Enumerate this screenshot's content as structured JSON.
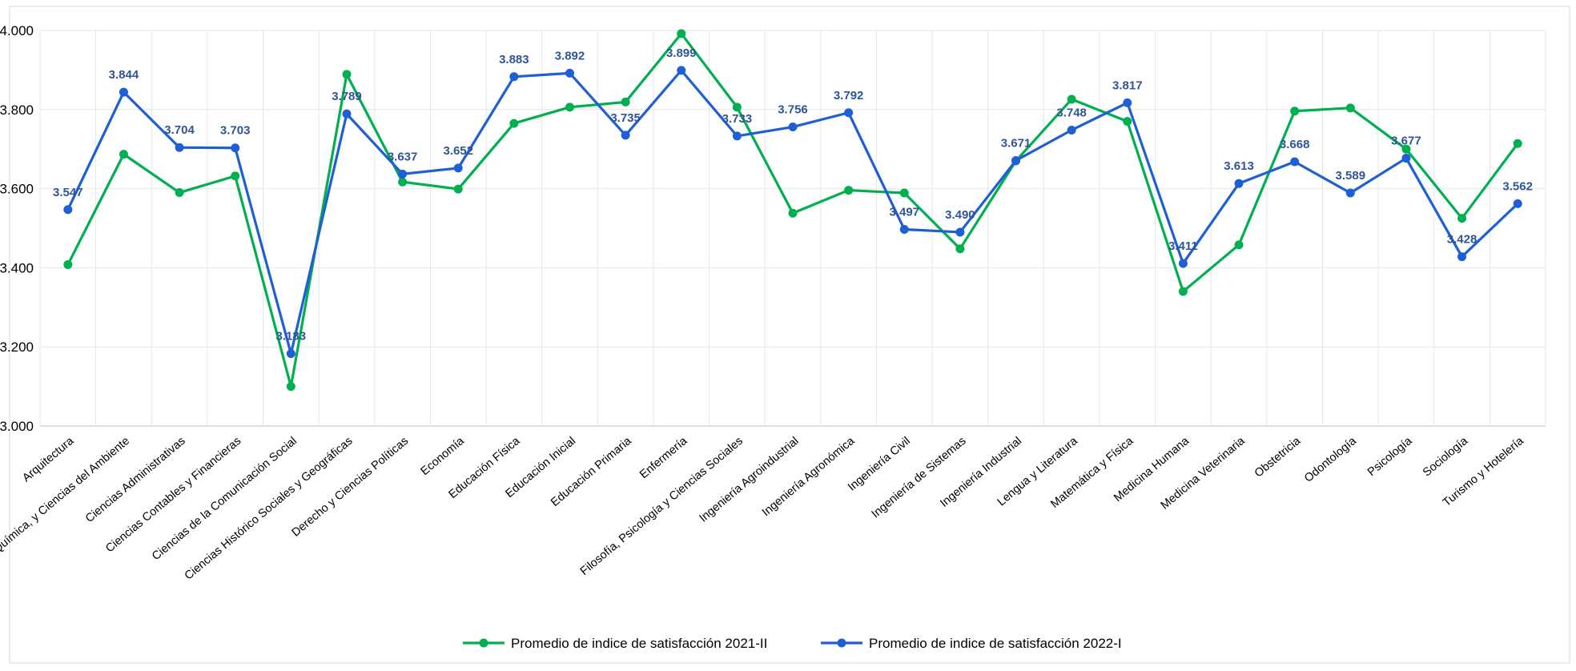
{
  "chart_data": {
    "type": "line",
    "title": "",
    "xlabel": "",
    "ylabel": "",
    "ylim": [
      3.0,
      4.0
    ],
    "yticks": [
      "3.000",
      "3.200",
      "3.400",
      "3.600",
      "3.800",
      "4.000"
    ],
    "grid": true,
    "legend_position": "bottom",
    "categories": [
      "Arquitectura",
      "Biología, Química, y Ciencias del Ambiente",
      "Ciencias Administrativas",
      "Ciencias Contables y Financieras",
      "Ciencias de la Comunicación Social",
      "Ciencias Histórico Sociales y Geográficas",
      "Derecho y Ciencias Políticas",
      "Economía",
      "Educación Física",
      "Educación Inicial",
      "Educación Primaria",
      "Enfermería",
      "Filosofía, Psicología y Ciencias Sociales",
      "Ingeniería Agroindustrial",
      "Ingeniería Agronómica",
      "Ingeniería Civil",
      "Ingeniería de Sistemas",
      "Ingeniería Industrial",
      "Lengua y Literatura",
      "Matemática y Física",
      "Medicina Humana",
      "Medicina Veterinaria",
      "Obstetricia",
      "Odontología",
      "Psicología",
      "Sociología",
      "Turismo y Hotelería"
    ],
    "series": [
      {
        "name": "Promedio de indice de satisfacción 2021-II",
        "color": "#00b050",
        "show_labels": false,
        "values": [
          3.408,
          3.687,
          3.59,
          3.632,
          3.1,
          3.889,
          3.617,
          3.599,
          3.765,
          3.806,
          3.819,
          3.992,
          3.806,
          3.538,
          3.596,
          3.589,
          3.448,
          3.67,
          3.826,
          3.77,
          3.34,
          3.458,
          3.796,
          3.804,
          3.7,
          3.525,
          3.714
        ]
      },
      {
        "name": "Promedio de indice de satisfacción 2022-I",
        "color": "#1f5fd6",
        "label_color": "#2f5597",
        "show_labels": true,
        "values": [
          3.547,
          3.844,
          3.704,
          3.703,
          3.183,
          3.789,
          3.637,
          3.652,
          3.883,
          3.892,
          3.735,
          3.899,
          3.733,
          3.756,
          3.792,
          3.497,
          3.49,
          3.671,
          3.748,
          3.817,
          3.411,
          3.613,
          3.668,
          3.589,
          3.677,
          3.428,
          3.562
        ]
      }
    ]
  }
}
